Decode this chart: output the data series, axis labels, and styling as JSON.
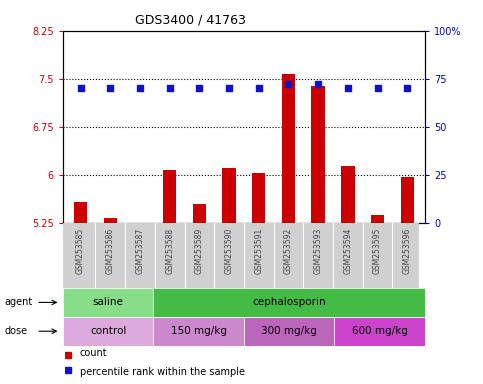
{
  "title": "GDS3400 / 41763",
  "samples": [
    "GSM253585",
    "GSM253586",
    "GSM253587",
    "GSM253588",
    "GSM253589",
    "GSM253590",
    "GSM253591",
    "GSM253592",
    "GSM253593",
    "GSM253594",
    "GSM253595",
    "GSM253596"
  ],
  "bar_values": [
    5.58,
    5.32,
    5.24,
    6.08,
    5.55,
    6.1,
    6.03,
    7.58,
    7.38,
    6.13,
    5.37,
    5.97
  ],
  "dot_values": [
    70,
    70,
    70,
    70,
    70,
    70,
    70,
    72,
    72,
    70,
    70,
    70
  ],
  "bar_color": "#cc0000",
  "dot_color": "#1111cc",
  "ylim_left": [
    5.25,
    8.25
  ],
  "ylim_right": [
    0,
    100
  ],
  "yticks_left": [
    5.25,
    6.0,
    6.75,
    7.5,
    8.25
  ],
  "ytick_labels_left": [
    "5.25",
    "6",
    "6.75",
    "7.5",
    "8.25"
  ],
  "yticks_right": [
    0,
    25,
    50,
    75,
    100
  ],
  "ytick_labels_right": [
    "0",
    "25",
    "50",
    "75",
    "100%"
  ],
  "dotted_lines": [
    6.0,
    6.75,
    7.5
  ],
  "agent_groups": [
    {
      "label": "saline",
      "start": 0,
      "end": 3,
      "color": "#88dd88"
    },
    {
      "label": "cephalosporin",
      "start": 3,
      "end": 12,
      "color": "#44bb44"
    }
  ],
  "dose_groups": [
    {
      "label": "control",
      "start": 0,
      "end": 3,
      "color": "#ddaadd"
    },
    {
      "label": "150 mg/kg",
      "start": 3,
      "end": 6,
      "color": "#cc88cc"
    },
    {
      "label": "300 mg/kg",
      "start": 6,
      "end": 9,
      "color": "#bb66bb"
    },
    {
      "label": "600 mg/kg",
      "start": 9,
      "end": 12,
      "color": "#cc44cc"
    }
  ],
  "label_agent": "agent",
  "label_dose": "dose",
  "legend_count": "count",
  "legend_pct": "percentile rank within the sample",
  "bar_width": 0.45,
  "tick_color_left": "#cc0000",
  "tick_color_right": "#0000cc",
  "sample_bg_color": "#d0d0d0",
  "sample_label_color": "#444444"
}
